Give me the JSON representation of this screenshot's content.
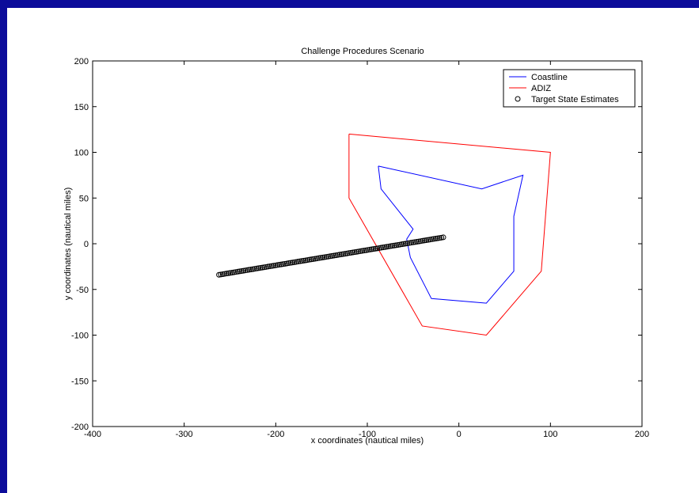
{
  "chart_data": {
    "type": "line",
    "title": "Challenge Procedures Scenario",
    "xlabel": "x coordinates (nautical miles)",
    "ylabel": "y coordinates (nautical miles)",
    "xlim": [
      -400,
      200
    ],
    "ylim": [
      -200,
      200
    ],
    "xticks": [
      -400,
      -300,
      -200,
      -100,
      0,
      100,
      200
    ],
    "yticks": [
      -200,
      -150,
      -100,
      -50,
      0,
      50,
      100,
      150,
      200
    ],
    "xtick_labels": [
      "-400",
      "-300",
      "-200",
      "-100",
      "0",
      "100",
      "200"
    ],
    "ytick_labels": [
      "-200",
      "-150",
      "-100",
      "-50",
      "0",
      "50",
      "100",
      "150",
      "200"
    ],
    "grid": false,
    "legend_position": "top-right",
    "series": [
      {
        "name": "Coastline",
        "kind": "line",
        "color": "#0000ff",
        "x": [
          -88,
          -85,
          -50,
          -57,
          -53,
          -30,
          30,
          60,
          60,
          70,
          25,
          -88
        ],
        "y": [
          85,
          60,
          16,
          5,
          -15,
          -60,
          -65,
          -30,
          30,
          75,
          60,
          85
        ]
      },
      {
        "name": "ADIZ",
        "kind": "line",
        "color": "#ff0000",
        "x": [
          -120,
          -120,
          -40,
          30,
          90,
          100,
          -120
        ],
        "y": [
          120,
          50,
          -90,
          -100,
          -30,
          100,
          120
        ]
      },
      {
        "name": "Target State Estimates",
        "kind": "scatter",
        "marker": "o",
        "color": "#000000",
        "x_start": -262,
        "y_start": -34,
        "x_end": -17,
        "y_end": 7,
        "count": 120
      }
    ]
  }
}
